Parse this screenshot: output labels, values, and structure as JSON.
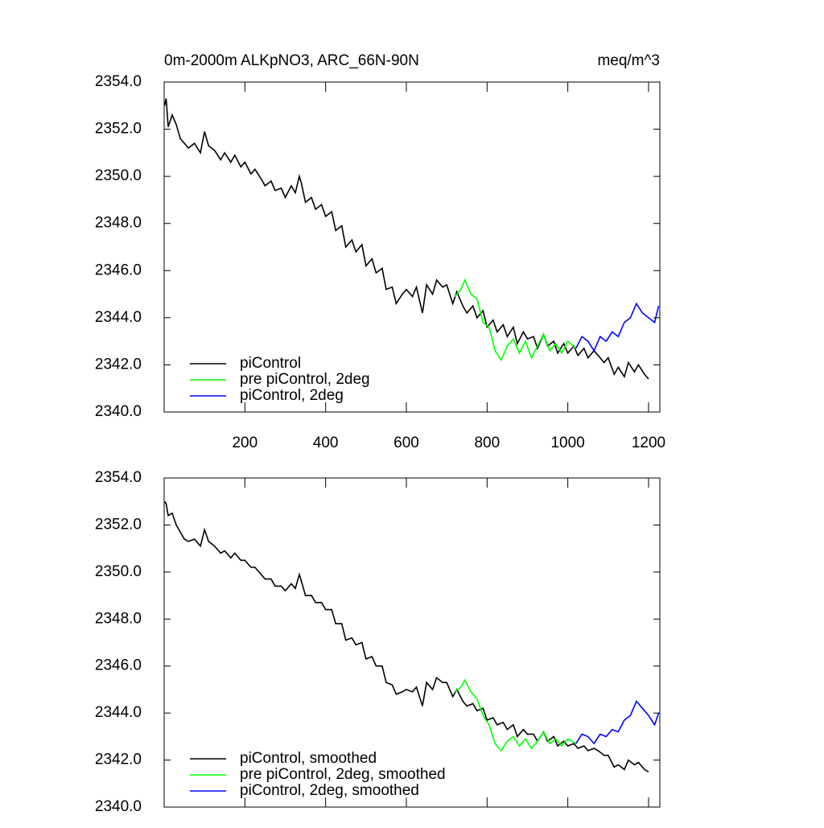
{
  "chart_data": [
    {
      "type": "line",
      "title": "0m-2000m ALKpNO3, ARC_66N-90N",
      "subtitle": "meq/m^3",
      "xlim": [
        0,
        1228
      ],
      "xticks": [
        200,
        400,
        600,
        800,
        1000,
        1200
      ],
      "ylim": [
        2340,
        2354
      ],
      "yticks": [
        {
          "value": 2340,
          "label": "2340.0"
        },
        {
          "value": 2342,
          "label": "2342.0"
        },
        {
          "value": 2344,
          "label": "2344.0"
        },
        {
          "value": 2346,
          "label": "2346.0"
        },
        {
          "value": 2348,
          "label": "2348.0"
        },
        {
          "value": 2350,
          "label": "2350.0"
        },
        {
          "value": 2352,
          "label": "2352.0"
        },
        {
          "value": 2354,
          "label": "2354.0"
        }
      ],
      "legend": "lower left",
      "series": [
        {
          "name": "piControl",
          "color": "#000000",
          "x": [
            1,
            5,
            10,
            20,
            30,
            40,
            50,
            60,
            75,
            90,
            100,
            110,
            125,
            140,
            150,
            165,
            175,
            190,
            200,
            215,
            225,
            240,
            250,
            265,
            275,
            290,
            300,
            315,
            325,
            335,
            340,
            350,
            365,
            375,
            390,
            400,
            415,
            425,
            440,
            450,
            465,
            475,
            490,
            500,
            515,
            525,
            540,
            550,
            565,
            575,
            590,
            600,
            615,
            625,
            640,
            650,
            665,
            675,
            690,
            700,
            715,
            725,
            740,
            750,
            765,
            775,
            790,
            800,
            815,
            825,
            840,
            850,
            865,
            875,
            890,
            900,
            915,
            925,
            940,
            950,
            965,
            975,
            990,
            1000,
            1015,
            1025,
            1040,
            1050,
            1065,
            1075,
            1090,
            1100,
            1115,
            1125,
            1140,
            1150,
            1165,
            1175,
            1190,
            1200
          ],
          "values": [
            2353.0,
            2353.3,
            2352.1,
            2352.6,
            2352.2,
            2351.6,
            2351.4,
            2351.2,
            2351.4,
            2351.0,
            2351.9,
            2351.3,
            2351.1,
            2350.7,
            2351.0,
            2350.6,
            2350.9,
            2350.4,
            2350.6,
            2350.1,
            2350.3,
            2349.9,
            2349.6,
            2349.8,
            2349.4,
            2349.5,
            2349.1,
            2349.6,
            2349.3,
            2350.0,
            2349.7,
            2348.9,
            2349.1,
            2348.6,
            2348.8,
            2348.3,
            2348.5,
            2347.7,
            2347.9,
            2347.0,
            2347.3,
            2346.8,
            2347.1,
            2346.2,
            2346.5,
            2345.9,
            2346.1,
            2345.2,
            2345.3,
            2344.6,
            2345.0,
            2345.2,
            2344.9,
            2345.3,
            2344.2,
            2345.4,
            2345.0,
            2345.6,
            2345.3,
            2345.4,
            2344.6,
            2345.1,
            2344.5,
            2344.2,
            2344.5,
            2344.0,
            2344.3,
            2343.6,
            2343.9,
            2343.4,
            2343.7,
            2343.2,
            2343.6,
            2342.9,
            2343.4,
            2343.1,
            2343.2,
            2342.7,
            2343.3,
            2342.8,
            2343.0,
            2342.5,
            2342.9,
            2342.5,
            2342.8,
            2342.4,
            2342.7,
            2342.3,
            2342.6,
            2342.4,
            2342.1,
            2342.3,
            2341.6,
            2341.9,
            2341.5,
            2342.1,
            2341.7,
            2342.0,
            2341.6,
            2341.4
          ]
        },
        {
          "name": "pre piControl, 2deg",
          "color": "#00ff00",
          "x": [
            720,
            735,
            745,
            760,
            775,
            790,
            805,
            820,
            835,
            850,
            865,
            880,
            895,
            910,
            925,
            940,
            955,
            970,
            985,
            1000,
            1020
          ],
          "values": [
            2344.9,
            2345.2,
            2345.6,
            2345.0,
            2344.8,
            2343.8,
            2343.6,
            2342.6,
            2342.2,
            2342.8,
            2343.1,
            2342.5,
            2343.0,
            2342.3,
            2342.8,
            2343.3,
            2342.6,
            2342.9,
            2342.5,
            2343.0,
            2342.7
          ]
        },
        {
          "name": "piControl, 2deg",
          "color": "#0000ff",
          "x": [
            1020,
            1035,
            1050,
            1065,
            1080,
            1095,
            1110,
            1125,
            1140,
            1155,
            1170,
            1185,
            1200,
            1215,
            1225
          ],
          "values": [
            2342.7,
            2343.2,
            2343.0,
            2342.6,
            2343.2,
            2343.0,
            2343.4,
            2343.2,
            2343.8,
            2344.0,
            2344.6,
            2344.2,
            2344.0,
            2343.8,
            2344.5
          ]
        }
      ]
    },
    {
      "type": "line",
      "xlim": [
        0,
        1228
      ],
      "xticks": [
        200,
        400,
        600,
        800,
        1000,
        1200
      ],
      "ylim": [
        2340,
        2354
      ],
      "yticks": [
        {
          "value": 2340,
          "label": "2340.0"
        },
        {
          "value": 2342,
          "label": "2342.0"
        },
        {
          "value": 2344,
          "label": "2344.0"
        },
        {
          "value": 2346,
          "label": "2346.0"
        },
        {
          "value": 2348,
          "label": "2348.0"
        },
        {
          "value": 2350,
          "label": "2350.0"
        },
        {
          "value": 2352,
          "label": "2352.0"
        },
        {
          "value": 2354,
          "label": "2354.0"
        }
      ],
      "legend": "lower left",
      "series": [
        {
          "name": "piControl, smoothed",
          "color": "#000000",
          "x": [
            1,
            5,
            10,
            20,
            30,
            40,
            50,
            60,
            75,
            90,
            100,
            110,
            125,
            140,
            150,
            165,
            175,
            190,
            200,
            215,
            225,
            240,
            250,
            265,
            275,
            290,
            300,
            315,
            325,
            335,
            340,
            350,
            365,
            375,
            390,
            400,
            415,
            425,
            440,
            450,
            465,
            475,
            490,
            500,
            515,
            525,
            540,
            550,
            565,
            575,
            590,
            600,
            615,
            625,
            640,
            650,
            665,
            675,
            690,
            700,
            715,
            725,
            740,
            750,
            765,
            775,
            790,
            800,
            815,
            825,
            840,
            850,
            865,
            875,
            890,
            900,
            915,
            925,
            940,
            950,
            965,
            975,
            990,
            1000,
            1015,
            1025,
            1040,
            1050,
            1065,
            1075,
            1090,
            1100,
            1115,
            1125,
            1140,
            1150,
            1165,
            1175,
            1190,
            1200
          ],
          "values": [
            2353.0,
            2352.9,
            2352.4,
            2352.5,
            2352.0,
            2351.7,
            2351.4,
            2351.3,
            2351.4,
            2351.1,
            2351.8,
            2351.3,
            2351.1,
            2350.8,
            2350.9,
            2350.6,
            2350.8,
            2350.5,
            2350.5,
            2350.2,
            2350.2,
            2349.9,
            2349.7,
            2349.7,
            2349.4,
            2349.4,
            2349.2,
            2349.5,
            2349.3,
            2349.9,
            2349.6,
            2349.0,
            2349.0,
            2348.7,
            2348.7,
            2348.4,
            2348.4,
            2347.8,
            2347.8,
            2347.1,
            2347.2,
            2346.9,
            2347.0,
            2346.3,
            2346.4,
            2346.0,
            2346.0,
            2345.3,
            2345.2,
            2344.8,
            2344.9,
            2345.0,
            2344.9,
            2345.1,
            2344.3,
            2345.3,
            2345.0,
            2345.5,
            2345.3,
            2345.3,
            2344.7,
            2345.0,
            2344.5,
            2344.3,
            2344.4,
            2344.1,
            2344.2,
            2343.7,
            2343.8,
            2343.5,
            2343.6,
            2343.3,
            2343.5,
            2343.0,
            2343.3,
            2343.1,
            2343.1,
            2342.8,
            2343.2,
            2342.8,
            2343.0,
            2342.6,
            2342.8,
            2342.6,
            2342.7,
            2342.5,
            2342.6,
            2342.4,
            2342.5,
            2342.4,
            2342.2,
            2342.2,
            2341.7,
            2341.8,
            2341.6,
            2342.0,
            2341.8,
            2341.9,
            2341.6,
            2341.5
          ]
        },
        {
          "name": "pre piControl, 2deg, smoothed",
          "color": "#00ff00",
          "x": [
            720,
            735,
            745,
            760,
            775,
            790,
            805,
            820,
            835,
            850,
            865,
            880,
            895,
            910,
            925,
            940,
            955,
            970,
            985,
            1000,
            1020
          ],
          "values": [
            2344.9,
            2345.1,
            2345.4,
            2344.9,
            2344.6,
            2343.9,
            2343.5,
            2342.7,
            2342.4,
            2342.8,
            2343.0,
            2342.6,
            2342.9,
            2342.5,
            2342.8,
            2343.2,
            2342.7,
            2342.9,
            2342.6,
            2342.9,
            2342.7
          ]
        },
        {
          "name": "piControl, 2deg, smoothed",
          "color": "#0000ff",
          "x": [
            1020,
            1035,
            1050,
            1065,
            1080,
            1095,
            1110,
            1125,
            1140,
            1155,
            1170,
            1185,
            1200,
            1215,
            1225
          ],
          "values": [
            2342.7,
            2343.1,
            2343.0,
            2342.7,
            2343.1,
            2343.0,
            2343.3,
            2343.2,
            2343.7,
            2343.9,
            2344.5,
            2344.2,
            2343.9,
            2343.5,
            2344.0
          ]
        }
      ]
    }
  ]
}
